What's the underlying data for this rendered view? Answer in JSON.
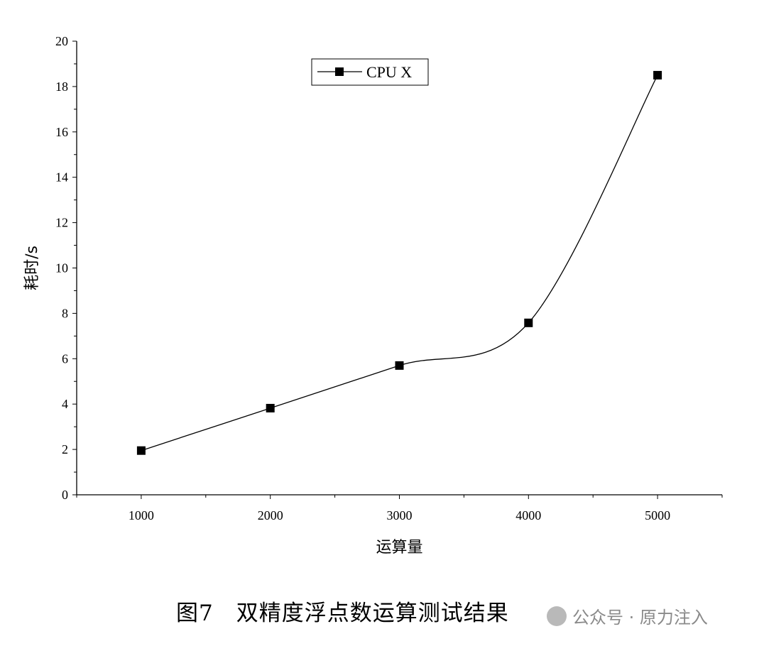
{
  "chart_data": {
    "type": "line",
    "title": "",
    "xlabel": "运算量",
    "ylabel": "耗时/s",
    "x": [
      1000,
      2000,
      3000,
      4000,
      5000
    ],
    "series": [
      {
        "name": "CPU X",
        "values": [
          1.95,
          3.82,
          5.7,
          7.58,
          18.5
        ]
      }
    ],
    "xlim": [
      500,
      5500
    ],
    "ylim": [
      0,
      20
    ],
    "x_ticks": [
      "1000",
      "2000",
      "3000",
      "4000",
      "5000"
    ],
    "y_ticks": [
      "0",
      "2",
      "4",
      "6",
      "8",
      "10",
      "12",
      "14",
      "16",
      "18",
      "20"
    ],
    "legend": {
      "position": "top-center",
      "entries": [
        "CPU X"
      ]
    },
    "grid": false,
    "line_style": "smooth",
    "marker": "square",
    "colors": {
      "line": "#000000",
      "marker": "#000000"
    }
  },
  "caption": "图7　双精度浮点数运算测试结果",
  "watermark": "公众号 · 原力注入",
  "watermark_icon": "wechat-logo-icon"
}
